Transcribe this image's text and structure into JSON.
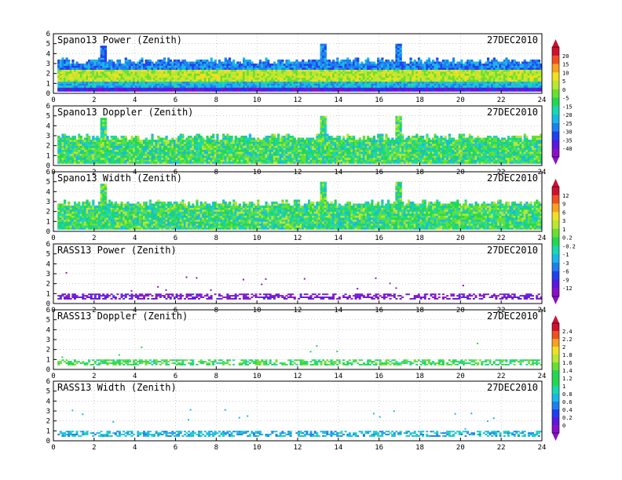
{
  "x_ticks": [
    "0",
    "2",
    "4",
    "6",
    "8",
    "10",
    "12",
    "14",
    "16",
    "18",
    "20",
    "22",
    "24"
  ],
  "y_ticks": [
    "0",
    "1",
    "2",
    "3",
    "4",
    "5",
    "6"
  ],
  "colorbar_power_ticks": [
    "20",
    "15",
    "10",
    "5",
    "0",
    "-5",
    "-15",
    "-20",
    "-25",
    "-30",
    "-35",
    "-40"
  ],
  "colorbar_doppler_ticks": [
    "12",
    "9",
    "6",
    "3",
    "1",
    "0.2",
    "-0.2",
    "-1",
    "-3",
    "-6",
    "-9",
    "-12"
  ],
  "colorbar_rass_ticks": [
    "2.4",
    "2.2",
    "2",
    "1.8",
    "1.6",
    "1.4",
    "1.2",
    "1",
    "0.8",
    "0.6",
    "0.4",
    "0.2",
    "0"
  ],
  "chart_data": [
    {
      "type": "heatmap",
      "title": "Spano13 Power (Zenith)",
      "date": "27DEC2010",
      "xlim": [
        0,
        24
      ],
      "ylim": [
        0,
        6
      ],
      "z_range": [
        -40,
        20
      ],
      "colormap": "rainbow (purple→blue→cyan→green→yellow→red)",
      "grid": true,
      "typical_top_height": 3.2,
      "bands": [
        {
          "height_range": [
            0,
            0.6
          ],
          "value": -35
        },
        {
          "height_range": [
            0.6,
            1.2
          ],
          "value": -20
        },
        {
          "height_range": [
            1.2,
            2.2
          ],
          "value": 0
        },
        {
          "height_range": [
            2.2,
            3.2
          ],
          "value": -25
        }
      ],
      "echo_spikes": [
        {
          "time": 2.4,
          "top": 4.8
        },
        {
          "time": 13.2,
          "top": 4.9
        },
        {
          "time": 16.9,
          "top": 5.0
        }
      ]
    },
    {
      "type": "heatmap",
      "title": "Spano13 Doppler (Zenith)",
      "date": "27DEC2010",
      "xlim": [
        0,
        24
      ],
      "ylim": [
        0,
        6
      ],
      "z_range": [
        -12,
        12
      ],
      "colormap": "rainbow",
      "grid": true,
      "typical_top_height": 2.8,
      "dominant_value": 0,
      "echo_spikes": [
        {
          "time": 2.4,
          "top": 4.8
        },
        {
          "time": 13.2,
          "top": 4.9
        },
        {
          "time": 16.9,
          "top": 5.0
        }
      ]
    },
    {
      "type": "heatmap",
      "title": "Spano13 Width (Zenith)",
      "date": "27DEC2010",
      "xlim": [
        0,
        24
      ],
      "ylim": [
        0,
        6
      ],
      "z_range": [
        0,
        2.4
      ],
      "colormap": "rainbow",
      "grid": true,
      "typical_top_height": 2.8,
      "dominant_value": 1.2,
      "echo_spikes": [
        {
          "time": 2.4,
          "top": 4.8
        },
        {
          "time": 13.2,
          "top": 4.9
        },
        {
          "time": 16.9,
          "top": 5.0
        }
      ]
    },
    {
      "type": "heatmap",
      "title": "RASS13 Power (Zenith)",
      "date": "27DEC2010",
      "xlim": [
        0,
        24
      ],
      "ylim": [
        0,
        6
      ],
      "z_range": [
        -40,
        20
      ],
      "colormap": "rainbow",
      "grid": true,
      "band_height_range": [
        0.4,
        1.0
      ],
      "dominant_value": -38
    },
    {
      "type": "heatmap",
      "title": "RASS13 Doppler (Zenith)",
      "date": "27DEC2010",
      "xlim": [
        0,
        24
      ],
      "ylim": [
        0,
        6
      ],
      "z_range": [
        -12,
        12
      ],
      "colormap": "rainbow",
      "grid": true,
      "band_height_range": [
        0.4,
        1.0
      ],
      "dominant_value": 0.4
    },
    {
      "type": "heatmap",
      "title": "RASS13 Width (Zenith)",
      "date": "27DEC2010",
      "xlim": [
        0,
        24
      ],
      "ylim": [
        0,
        6
      ],
      "z_range": [
        0,
        2.4
      ],
      "colormap": "rainbow",
      "grid": true,
      "band_height_range": [
        0.4,
        1.0
      ],
      "dominant_value": 0.8
    }
  ]
}
